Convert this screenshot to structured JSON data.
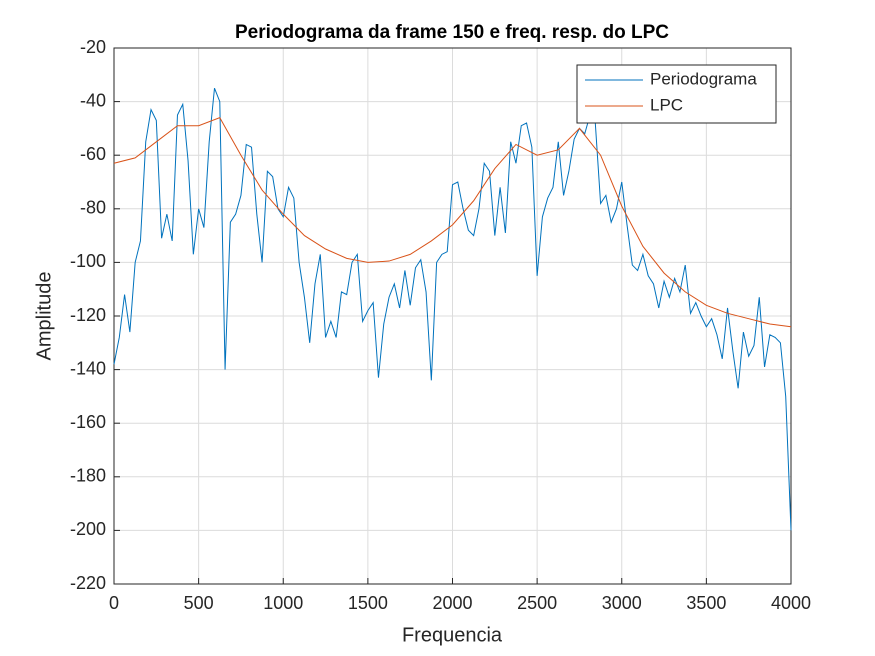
{
  "chart_data": {
    "type": "line",
    "title": "Periodograma da frame 150 e freq. resp. do LPC",
    "x_label": "Frequencia",
    "y_label": "Amplitude",
    "xlim": [
      0,
      4000
    ],
    "xticks": [
      0,
      500,
      1000,
      1500,
      2000,
      2500,
      3000,
      3500,
      4000
    ],
    "ylim": [
      -220,
      -20
    ],
    "yticks": [
      -220,
      -200,
      -180,
      -160,
      -140,
      -120,
      -100,
      -80,
      -60,
      -40,
      -20
    ],
    "grid": true,
    "legend": "northeast",
    "series": [
      {
        "name": "Periodograma",
        "color": "#0072bd",
        "x": [
          0,
          31.25,
          62.5,
          93.75,
          125,
          156.25,
          187.5,
          218.75,
          250,
          281.25,
          312.5,
          343.75,
          375,
          406.25,
          437.5,
          468.75,
          500,
          531.25,
          562.5,
          593.75,
          625,
          656.25,
          687.5,
          718.75,
          750,
          781.25,
          812.5,
          843.75,
          875,
          906.25,
          937.5,
          968.75,
          1000,
          1031.25,
          1062.5,
          1093.75,
          1125,
          1156.25,
          1187.5,
          1218.75,
          1250,
          1281.25,
          1312.5,
          1343.75,
          1375,
          1406.25,
          1437.5,
          1468.75,
          1500,
          1531.25,
          1562.5,
          1593.75,
          1625,
          1656.25,
          1687.5,
          1718.75,
          1750,
          1781.25,
          1812.5,
          1843.75,
          1875,
          1906.25,
          1937.5,
          1968.75,
          2000,
          2031.25,
          2062.5,
          2093.75,
          2125,
          2156.25,
          2187.5,
          2218.75,
          2250,
          2281.25,
          2312.5,
          2343.75,
          2375,
          2406.25,
          2437.5,
          2468.75,
          2500,
          2531.25,
          2562.5,
          2593.75,
          2625,
          2656.25,
          2687.5,
          2718.75,
          2750,
          2781.25,
          2812.5,
          2843.75,
          2875,
          2906.25,
          2937.5,
          2968.75,
          3000,
          3031.25,
          3062.5,
          3093.75,
          3125,
          3156.25,
          3187.5,
          3218.75,
          3250,
          3281.25,
          3312.5,
          3343.75,
          3375,
          3406.25,
          3437.5,
          3468.75,
          3500,
          3531.25,
          3562.5,
          3593.75,
          3625,
          3656.25,
          3687.5,
          3718.75,
          3750,
          3781.25,
          3812.5,
          3843.75,
          3875,
          3906.25,
          3937.5,
          3968.75,
          4000
        ],
        "values": [
          -138,
          -128,
          -112,
          -126,
          -100,
          -92,
          -55,
          -43,
          -47,
          -91,
          -82,
          -92,
          -45,
          -41,
          -62,
          -97,
          -80,
          -87,
          -55,
          -35,
          -40,
          -140,
          -85,
          -82,
          -75,
          -56,
          -57,
          -82,
          -100,
          -66,
          -68,
          -80,
          -83,
          -72,
          -76,
          -100,
          -113,
          -130,
          -108,
          -97,
          -128,
          -122,
          -128,
          -111,
          -112,
          -100,
          -97,
          -122,
          -118,
          -115,
          -143,
          -123,
          -113,
          -108,
          -117,
          -103,
          -116,
          -102,
          -99,
          -111,
          -144,
          -100,
          -97,
          -96,
          -71,
          -70,
          -80,
          -88,
          -90,
          -80,
          -63,
          -66,
          -90,
          -72,
          -89,
          -55,
          -63,
          -49,
          -48,
          -57,
          -105,
          -83,
          -76,
          -72,
          -55,
          -75,
          -66,
          -54,
          -50,
          -52,
          -45,
          -48,
          -78,
          -75,
          -85,
          -80,
          -70,
          -86,
          -101,
          -103,
          -97,
          -105,
          -108,
          -117,
          -107,
          -113,
          -106,
          -111,
          -101,
          -119,
          -115,
          -120,
          -124,
          -121,
          -127,
          -136,
          -117,
          -133,
          -147,
          -126,
          -135,
          -131,
          -113,
          -139,
          -127,
          -128,
          -130,
          -150,
          -200
        ]
      },
      {
        "name": "LPC",
        "color": "#d95319",
        "x": [
          0,
          125,
          250,
          375,
          500,
          625,
          750,
          875,
          1000,
          1125,
          1250,
          1375,
          1500,
          1625,
          1750,
          1875,
          2000,
          2125,
          2250,
          2375,
          2500,
          2625,
          2750,
          2875,
          3000,
          3125,
          3250,
          3375,
          3500,
          3625,
          3750,
          3875,
          4000
        ],
        "values": [
          -63,
          -61,
          -55,
          -49,
          -49,
          -46,
          -60,
          -73,
          -82,
          -90,
          -95,
          -98.5,
          -100,
          -99.5,
          -97,
          -92,
          -86,
          -77,
          -65,
          -56,
          -60,
          -58,
          -50,
          -60,
          -79,
          -94,
          -104,
          -111,
          -116,
          -119,
          -121,
          -123,
          -124
        ]
      }
    ]
  }
}
